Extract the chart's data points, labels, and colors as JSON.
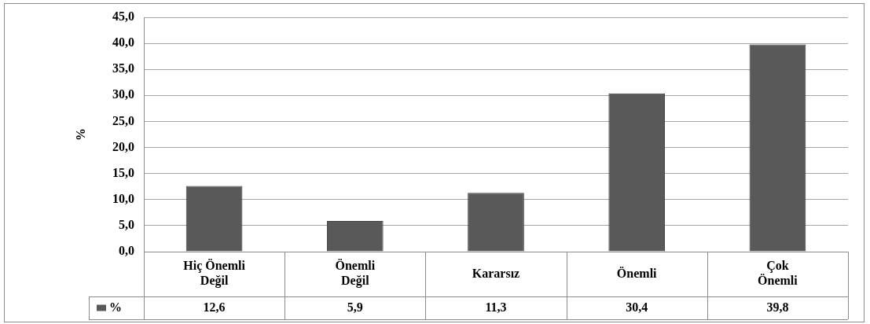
{
  "chart_data": {
    "type": "bar",
    "ylabel": "%",
    "categories": [
      "Hiç Önemli Değil",
      "Önemli Değil",
      "Kararsız",
      "Önemli",
      "Çok Önemli"
    ],
    "series": [
      {
        "name": "%",
        "color": "#595959",
        "values": [
          12.6,
          5.9,
          11.3,
          30.4,
          39.8
        ],
        "value_labels": [
          "12,6",
          "5,9",
          "11,3",
          "30,4",
          "39,8"
        ]
      }
    ],
    "ylim": [
      0,
      45
    ],
    "yticks": [
      {
        "value": 0,
        "label": "0,0"
      },
      {
        "value": 5,
        "label": "5,0"
      },
      {
        "value": 10,
        "label": "10,0"
      },
      {
        "value": 15,
        "label": "15,0"
      },
      {
        "value": 20,
        "label": "20,0"
      },
      {
        "value": 25,
        "label": "25,0"
      },
      {
        "value": 30,
        "label": "30,0"
      },
      {
        "value": 35,
        "label": "35,0"
      },
      {
        "value": 40,
        "label": "40,0"
      },
      {
        "value": 45,
        "label": "45,0"
      }
    ],
    "grid": "y",
    "legend": "bottom left"
  }
}
